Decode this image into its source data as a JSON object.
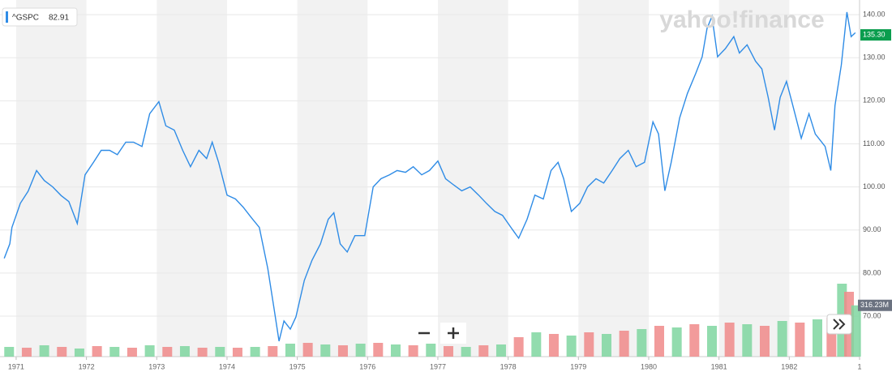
{
  "chart_data": {
    "type": "line",
    "watermark": "yahoo!finance",
    "series": [
      {
        "name": "^GSPC",
        "color": "#2f8ce6",
        "x": [
          1970.83,
          1970.91,
          1970.94,
          1971.06,
          1971.17,
          1971.29,
          1971.4,
          1971.52,
          1971.64,
          1971.75,
          1971.87,
          1971.98,
          1972.1,
          1972.21,
          1972.33,
          1972.44,
          1972.56,
          1972.67,
          1972.79,
          1972.9,
          1973.03,
          1973.13,
          1973.25,
          1973.37,
          1973.48,
          1973.6,
          1973.71,
          1973.79,
          1973.88,
          1974.0,
          1974.12,
          1974.23,
          1974.35,
          1974.46,
          1974.58,
          1974.67,
          1974.74,
          1974.81,
          1974.9,
          1974.98,
          1975.1,
          1975.21,
          1975.33,
          1975.44,
          1975.52,
          1975.61,
          1975.71,
          1975.82,
          1975.96,
          1976.08,
          1976.19,
          1976.31,
          1976.42,
          1976.54,
          1976.65,
          1976.77,
          1976.88,
          1977.0,
          1977.11,
          1977.23,
          1977.34,
          1977.46,
          1977.58,
          1977.69,
          1977.81,
          1977.92,
          1978.04,
          1978.15,
          1978.27,
          1978.38,
          1978.5,
          1978.61,
          1978.71,
          1978.79,
          1978.9,
          1979.02,
          1979.13,
          1979.25,
          1979.36,
          1979.48,
          1979.59,
          1979.71,
          1979.82,
          1979.94,
          1980.06,
          1980.14,
          1980.23,
          1980.32,
          1980.44,
          1980.55,
          1980.67,
          1980.76,
          1980.83,
          1980.9,
          1980.98,
          1981.09,
          1981.21,
          1981.29,
          1981.4,
          1981.52,
          1981.61,
          1981.7,
          1981.79,
          1981.87,
          1981.96,
          1982.05,
          1982.17,
          1982.28,
          1982.37,
          1982.51,
          1982.59,
          1982.65,
          1982.74,
          1982.82,
          1982.88,
          1982.94
        ],
        "values": [
          83.4,
          86.8,
          90.6,
          96.2,
          99,
          103.8,
          101.5,
          100,
          98,
          96.6,
          91.5,
          102.8,
          105.7,
          108.5,
          108.5,
          107.5,
          110.4,
          110.4,
          109.4,
          117,
          119.8,
          114.2,
          113.2,
          108.5,
          104.7,
          108.5,
          106.6,
          110.4,
          105.7,
          98.1,
          97.2,
          95.3,
          92.8,
          90.6,
          81.1,
          71.7,
          64.2,
          68.9,
          67,
          69.8,
          78.3,
          83,
          86.8,
          92.5,
          94,
          86.8,
          84.9,
          88.7,
          88.7,
          100,
          101.9,
          102.8,
          103.8,
          103.4,
          104.7,
          102.8,
          103.8,
          106,
          101.9,
          100.4,
          99.1,
          100,
          98.1,
          96.2,
          94.3,
          93.4,
          90.6,
          88.1,
          92.5,
          98.1,
          97.2,
          103.8,
          105.7,
          101.9,
          94.3,
          96.2,
          100,
          101.9,
          100.9,
          103.8,
          106.6,
          108.5,
          104.7,
          105.7,
          115.1,
          112.3,
          99.1,
          105.7,
          116,
          121.7,
          126.4,
          130.2,
          136.8,
          139.6,
          130.2,
          132.1,
          134.9,
          131.1,
          133,
          129.2,
          127.4,
          120.8,
          113.2,
          120.8,
          124.5,
          118.9,
          111.3,
          117,
          112.3,
          109.4,
          103.8,
          118.9,
          128.3,
          140.6,
          134.9,
          135.8
        ]
      }
    ],
    "legend_value": 82.91,
    "last_price": {
      "value": 135.3,
      "label": "135.30"
    },
    "volume": {
      "colors": [
        "#7fd6a0",
        "#f08a8a"
      ],
      "ylim": [
        0,
        2200
      ],
      "last": {
        "value": 316.23,
        "label": "316.23M"
      },
      "x": [
        1970.9,
        1971.15,
        1971.4,
        1971.65,
        1971.9,
        1972.15,
        1972.4,
        1972.65,
        1972.9,
        1973.15,
        1973.4,
        1973.65,
        1973.9,
        1974.15,
        1974.4,
        1974.65,
        1974.9,
        1975.15,
        1975.4,
        1975.65,
        1975.9,
        1976.15,
        1976.4,
        1976.65,
        1976.9,
        1977.15,
        1977.4,
        1977.65,
        1977.9,
        1978.15,
        1978.4,
        1978.65,
        1978.9,
        1979.15,
        1979.4,
        1979.65,
        1979.9,
        1980.15,
        1980.4,
        1980.65,
        1980.9,
        1981.15,
        1981.4,
        1981.65,
        1981.9,
        1982.15,
        1982.4,
        1982.6,
        1982.75,
        1982.85,
        1982.95
      ],
      "values": [
        60,
        55,
        70,
        60,
        50,
        65,
        60,
        55,
        70,
        60,
        65,
        55,
        60,
        55,
        60,
        65,
        80,
        85,
        75,
        70,
        80,
        85,
        75,
        70,
        80,
        65,
        60,
        70,
        75,
        120,
        150,
        140,
        130,
        150,
        140,
        160,
        170,
        190,
        180,
        200,
        190,
        210,
        200,
        190,
        220,
        210,
        230,
        240,
        450,
        400,
        316.23
      ]
    },
    "xlim": [
      1970.77,
      1983.0
    ],
    "xticks": [
      1971,
      1972,
      1973,
      1974,
      1975,
      1976,
      1977,
      1978,
      1979,
      1980,
      1981,
      1982,
      {
        "value": 1983,
        "label": "1"
      }
    ],
    "ylim": [
      60.6,
      143.4
    ],
    "yticks": [
      {
        "value": 70,
        "label": "70.00"
      },
      {
        "value": 80,
        "label": "80.00"
      },
      {
        "value": 90,
        "label": "90.00"
      },
      {
        "value": 100,
        "label": "100.00"
      },
      {
        "value": 110,
        "label": "110.00"
      },
      {
        "value": 120,
        "label": "120.00"
      },
      {
        "value": 130,
        "label": "130.00"
      },
      {
        "value": 140,
        "label": "140.00"
      }
    ],
    "grid": true
  }
}
